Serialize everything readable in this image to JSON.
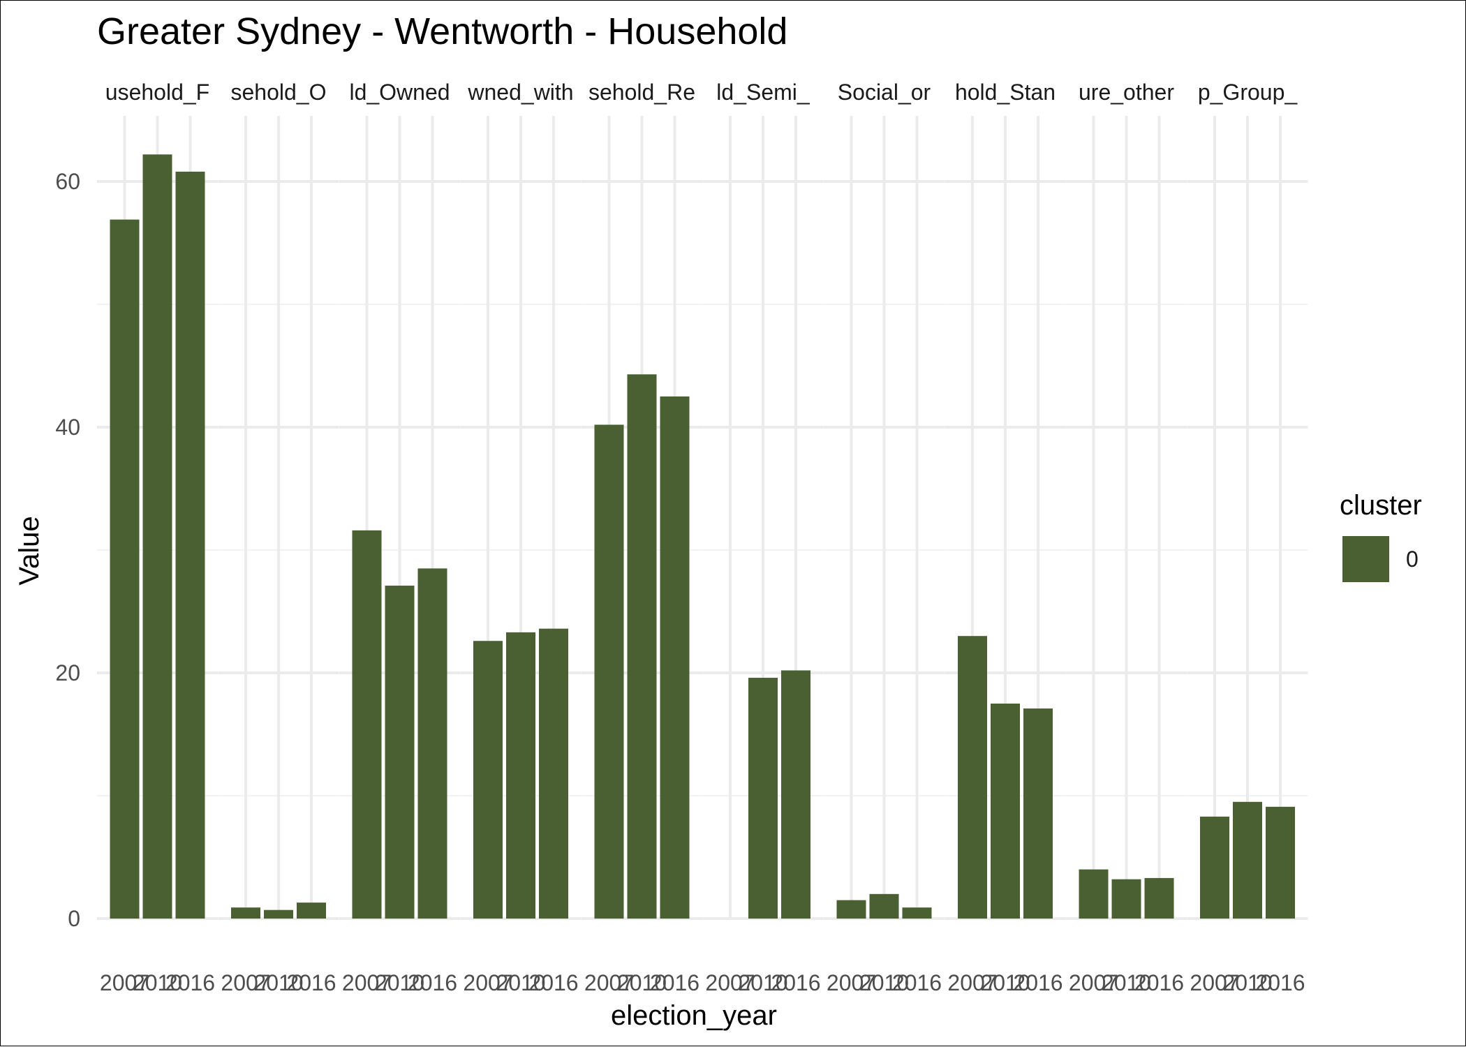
{
  "chart_data": {
    "type": "bar",
    "title": "Greater Sydney - Wentworth - Household",
    "xlabel": "election_year",
    "ylabel": "Value",
    "ylim": [
      0,
      65
    ],
    "yticks": [
      0,
      20,
      40,
      60
    ],
    "bar_color": "#4a5f32",
    "grid": true,
    "legend": {
      "title": "cluster",
      "placement": "right",
      "entries": [
        {
          "label": "0",
          "color": "#4a5f32"
        }
      ]
    },
    "categories": [
      "2007",
      "2010",
      "2016"
    ],
    "panels": [
      {
        "label": "usehold_F",
        "values": [
          56.9,
          62.2,
          60.8
        ]
      },
      {
        "label": "sehold_O",
        "values": [
          0.9,
          0.7,
          1.3
        ]
      },
      {
        "label": "ld_Owned",
        "values": [
          31.6,
          27.1,
          28.5
        ]
      },
      {
        "label": "wned_with",
        "values": [
          22.6,
          23.3,
          23.6
        ]
      },
      {
        "label": "sehold_Re",
        "values": [
          40.2,
          44.3,
          42.5
        ]
      },
      {
        "label": "ld_Semi_",
        "values": [
          null,
          19.6,
          20.2
        ]
      },
      {
        "label": "Social_or",
        "values": [
          1.5,
          2.0,
          0.9
        ]
      },
      {
        "label": "hold_Stan",
        "values": [
          23.0,
          17.5,
          17.1
        ]
      },
      {
        "label": "ure_other",
        "values": [
          4.0,
          3.2,
          3.3
        ]
      },
      {
        "label": "p_Group_",
        "values": [
          8.3,
          9.5,
          9.1
        ]
      }
    ]
  }
}
